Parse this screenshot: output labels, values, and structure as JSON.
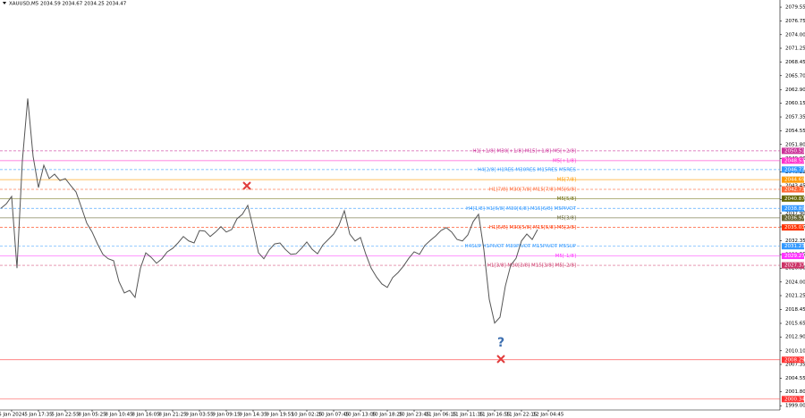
{
  "chart_data": {
    "type": "line",
    "title": "XAUUSD,M5 2034.59 2034.67 2034.25 2034.47",
    "color": "#555555",
    "categories": [
      null,
      null,
      "5 Jan 2024",
      null,
      null,
      null,
      null,
      "5 Jan 17:35",
      null,
      null,
      null,
      null,
      "5 Jan 22:55",
      null,
      null,
      null,
      null,
      "8 Jan 05:25",
      null,
      null,
      null,
      null,
      "8 Jan 10:45",
      null,
      null,
      null,
      null,
      "8 Jan 16:05",
      null,
      null,
      null,
      null,
      "8 Jan 21:25",
      null,
      null,
      null,
      null,
      "9 Jan 03:55",
      null,
      null,
      null,
      null,
      "9 Jan 09:15",
      null,
      null,
      null,
      null,
      "9 Jan 14:35",
      null,
      null,
      null,
      null,
      "9 Jan 19:55",
      null,
      null,
      null,
      null,
      "10 Jan 02:25",
      null,
      null,
      null,
      null,
      "10 Jan 07:45",
      null,
      null,
      null,
      null,
      "10 Jan 13:05",
      null,
      null,
      null,
      null,
      "10 Jan 18:25",
      null,
      null,
      null,
      null,
      "10 Jan 23:45",
      null,
      null,
      null,
      null,
      "11 Jan 06:15",
      null,
      null,
      null,
      null,
      "11 Jan 11:35",
      null,
      null,
      null,
      null,
      "11 Jan 16:55",
      null,
      null,
      null,
      null,
      "11 Jan 22:15",
      null,
      null,
      null,
      null,
      "12 Jan 04:45"
    ],
    "values": [
      2038.9,
      2039.8,
      2041.3,
      2026.8,
      2048.5,
      2061.1,
      2049.4,
      2043.1,
      2047.6,
      2044.9,
      2045.8,
      2044.5,
      2044.9,
      2043.5,
      2042.2,
      2039.1,
      2035.9,
      2034.1,
      2031.7,
      2029.6,
      2028.7,
      2028.3,
      2024.1,
      2021.8,
      2022.3,
      2020.9,
      2026.8,
      2029.9,
      2029.0,
      2027.8,
      2028.7,
      2030.1,
      2030.8,
      2031.9,
      2033.2,
      2032.3,
      2031.9,
      2034.4,
      2034.3,
      2033.2,
      2034.1,
      2035.2,
      2034.1,
      2034.6,
      2036.8,
      2037.7,
      2039.5,
      2035.0,
      2029.9,
      2028.7,
      2030.5,
      2031.7,
      2031.9,
      2030.6,
      2029.6,
      2029.7,
      2030.8,
      2032.1,
      2030.6,
      2029.7,
      2031.5,
      2032.6,
      2033.7,
      2035.5,
      2038.4,
      2033.7,
      2032.3,
      2033.0,
      2029.6,
      2026.8,
      2025.0,
      2023.6,
      2022.9,
      2024.9,
      2025.9,
      2027.2,
      2028.8,
      2030.1,
      2029.6,
      2031.4,
      2032.4,
      2033.3,
      2034.4,
      2035.0,
      2034.1,
      2032.6,
      2032.3,
      2033.5,
      2036.2,
      2037.7,
      2030.5,
      2020.5,
      2015.7,
      2016.9,
      2023.2,
      2027.4,
      2028.8,
      2032.3,
      2033.7,
      2032.6,
      2034.6,
      null,
      null
    ],
    "ylim": [
      1997.6,
      2081.0
    ],
    "yticks": [
      2079.55,
      2076.75,
      {
        "value": 2074.0,
        "label": "2074.00"
      },
      2071.25,
      2068.45,
      {
        "value": 2065.7,
        "label": "2065.70"
      },
      {
        "value": 2062.9,
        "label": "2062.90"
      },
      2060.15,
      2057.35,
      2054.55,
      {
        "value": 2051.8,
        "label": "2051.80"
      },
      {
        "value": 2049.0,
        "label": "2049.00"
      },
      2046.25,
      2043.45,
      {
        "value": 2040.7,
        "label": "2040.70"
      },
      {
        "value": 2037.9,
        "label": "2037.90"
      },
      2035.15,
      2032.35,
      2029.55,
      {
        "value": 2026.8,
        "label": "2026.80"
      },
      {
        "value": 2024.0,
        "label": "2024.00"
      },
      2021.25,
      2018.45,
      2015.65,
      {
        "value": 2012.9,
        "label": "2012.90"
      },
      {
        "value": 2010.1,
        "label": "2010.10"
      },
      2007.35,
      2004.55,
      {
        "value": 2001.8,
        "label": "2001.80"
      },
      {
        "value": 1999.0,
        "label": "1999.00"
      }
    ],
    "levels": [
      {
        "label": "H1[+1/8] M30[+1/8] M15[+1/8] M5[+2/8]",
        "value": 2050.51,
        "color": "#cc3399",
        "style": "dashed"
      },
      {
        "label": "M5[+1/8]",
        "value": 2048.53,
        "color": "#ff33cc",
        "style": "solid"
      },
      {
        "label": "H4[2/8] H1RES M30RES M15RES M5RES",
        "value": 2046.73,
        "color": "#3399ff",
        "style": "dashed"
      },
      {
        "label": "M5[7/8]",
        "value": 2044.69,
        "color": "#ff9900",
        "style": "solid"
      },
      {
        "label": "H1[7/8] M30[7/8] M15[7/8] M5[6/8]",
        "value": 2042.73,
        "color": "#ff6633",
        "style": "dashed"
      },
      {
        "label": "M5[5/8]",
        "value": 2040.87,
        "color": "#666600",
        "style": "solid"
      },
      {
        "label": "H4[1/8] H1[6/8] M30[6/8] M15[6/8] M5PIVOT",
        "value": 2038.89,
        "color": "#3399ff",
        "style": "dashed"
      },
      {
        "label": "M5[3/8]",
        "value": 2036.97,
        "color": "#666633",
        "style": "solid"
      },
      {
        "label": "H1[5/8] M30[5/8] M15[5/8] M5[2/8]",
        "value": 2035.03,
        "color": "#ff3300",
        "style": "dashed"
      },
      {
        "label": "H4SUP H1PIVOT M30PIVOT M15PIVOT M5SUP",
        "value": 2031.23,
        "color": "#3399ff",
        "style": "dashed"
      },
      {
        "label": "M5[-1/8]",
        "value": 2029.27,
        "color": "#ff33ff",
        "style": "solid"
      },
      {
        "label": "H1[3/8] M30[3/8] M15[3/8] M5[-2/8]",
        "value": 2027.37,
        "color": "#cc3366",
        "style": "dashed"
      },
      {
        "value": 2008.29,
        "color": "#ff3333",
        "style": "solid"
      },
      {
        "value": 2000.34,
        "color": "#ff3333",
        "style": "solid"
      }
    ]
  }
}
